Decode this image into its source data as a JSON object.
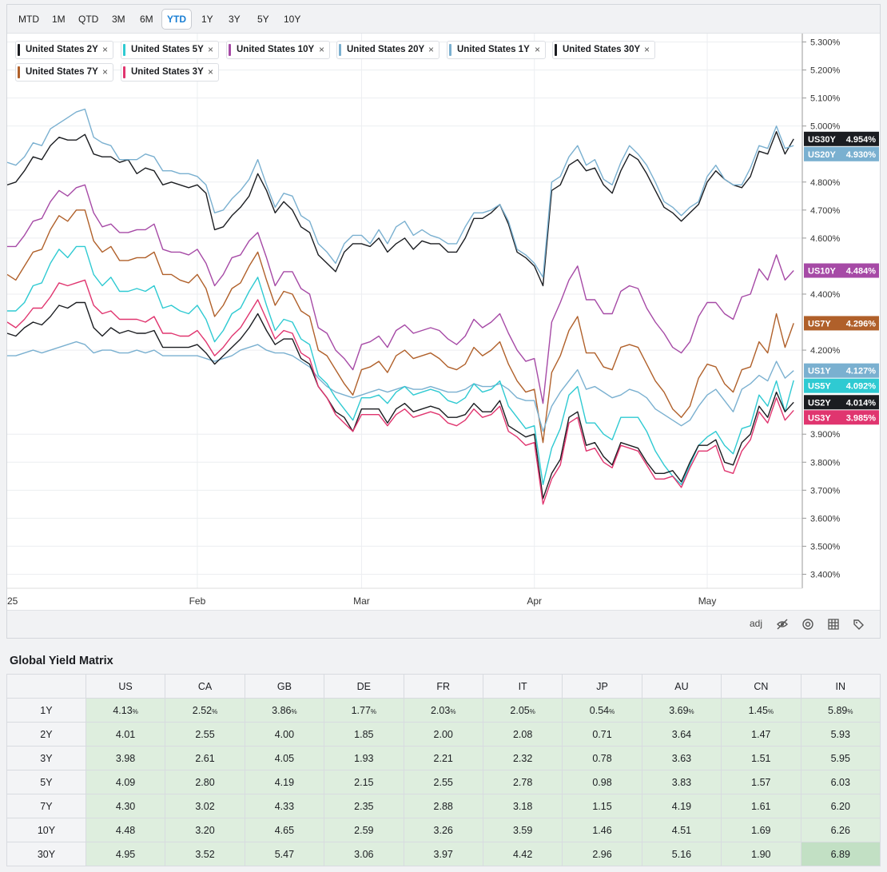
{
  "range_buttons": [
    "MTD",
    "1M",
    "QTD",
    "3M",
    "6M",
    "YTD",
    "1Y",
    "3Y",
    "5Y",
    "10Y"
  ],
  "active_range": "YTD",
  "legend_chips": [
    {
      "label": "United States 2Y",
      "color": "#1b1d21"
    },
    {
      "label": "United States 5Y",
      "color": "#2fcad2"
    },
    {
      "label": "United States 10Y",
      "color": "#a64aa6"
    },
    {
      "label": "United States 20Y",
      "color": "#7ab0d0"
    },
    {
      "label": "United States 1Y",
      "color": "#7ab0d0"
    },
    {
      "label": "United States 30Y",
      "color": "#1b1d21"
    },
    {
      "label": "United States 7Y",
      "color": "#b0602a"
    },
    {
      "label": "United States 3Y",
      "color": "#e0356f"
    }
  ],
  "chip_close": "×",
  "chart_data": {
    "type": "line",
    "x_labels": [
      {
        "label": "25",
        "x": 0
      },
      {
        "label": "Feb",
        "x": 22
      },
      {
        "label": "Mar",
        "x": 41
      },
      {
        "label": "Apr",
        "x": 61
      },
      {
        "label": "May",
        "x": 81
      }
    ],
    "x_max": 92,
    "y_ticks": [
      "5.300%",
      "5.200%",
      "5.100%",
      "5.000%",
      "4.800%",
      "4.700%",
      "4.600%",
      "4.400%",
      "4.200%",
      "3.900%",
      "3.800%",
      "3.700%",
      "3.600%",
      "3.500%",
      "3.400%"
    ],
    "ylim": [
      3.35,
      5.33
    ],
    "series": [
      {
        "name": "US30Y",
        "value_label": "4.954%",
        "color": "#1b1d21",
        "y": [
          4.79,
          4.8,
          4.84,
          4.89,
          4.88,
          4.93,
          4.96,
          4.95,
          4.95,
          4.97,
          4.9,
          4.89,
          4.89,
          4.87,
          4.88,
          4.83,
          4.85,
          4.84,
          4.79,
          4.8,
          4.79,
          4.78,
          4.79,
          4.76,
          4.63,
          4.64,
          4.68,
          4.71,
          4.75,
          4.83,
          4.77,
          4.69,
          4.73,
          4.7,
          4.64,
          4.62,
          4.54,
          4.51,
          4.48,
          4.55,
          4.58,
          4.58,
          4.57,
          4.6,
          4.55,
          4.58,
          4.6,
          4.56,
          4.59,
          4.58,
          4.58,
          4.55,
          4.55,
          4.6,
          4.67,
          4.67,
          4.69,
          4.72,
          4.65,
          4.55,
          4.53,
          4.5,
          4.43,
          4.77,
          4.79,
          4.86,
          4.88,
          4.84,
          4.85,
          4.79,
          4.76,
          4.84,
          4.9,
          4.88,
          4.83,
          4.77,
          4.71,
          4.69,
          4.66,
          4.69,
          4.72,
          4.8,
          4.84,
          4.81,
          4.79,
          4.78,
          4.82,
          4.91,
          4.9,
          4.98,
          4.9,
          4.954
        ]
      },
      {
        "name": "US20Y",
        "value_label": "4.930%",
        "color": "#7ab0d0",
        "y": [
          4.87,
          4.86,
          4.89,
          4.94,
          4.93,
          4.99,
          5.01,
          5.03,
          5.05,
          5.06,
          4.96,
          4.94,
          4.93,
          4.88,
          4.88,
          4.88,
          4.9,
          4.89,
          4.84,
          4.84,
          4.83,
          4.83,
          4.82,
          4.79,
          4.69,
          4.7,
          4.74,
          4.77,
          4.81,
          4.88,
          4.79,
          4.71,
          4.76,
          4.75,
          4.68,
          4.66,
          4.58,
          4.55,
          4.51,
          4.58,
          4.61,
          4.61,
          4.58,
          4.63,
          4.58,
          4.64,
          4.66,
          4.61,
          4.63,
          4.61,
          4.6,
          4.58,
          4.58,
          4.64,
          4.69,
          4.69,
          4.7,
          4.72,
          4.66,
          4.56,
          4.54,
          4.51,
          4.46,
          4.8,
          4.82,
          4.89,
          4.93,
          4.86,
          4.88,
          4.81,
          4.79,
          4.87,
          4.93,
          4.9,
          4.86,
          4.8,
          4.73,
          4.71,
          4.68,
          4.71,
          4.73,
          4.82,
          4.86,
          4.81,
          4.79,
          4.79,
          4.85,
          4.93,
          4.92,
          5.0,
          4.92,
          4.93
        ]
      },
      {
        "name": "US10Y",
        "value_label": "4.484%",
        "color": "#a64aa6",
        "y": [
          4.57,
          4.57,
          4.61,
          4.66,
          4.67,
          4.73,
          4.77,
          4.75,
          4.78,
          4.79,
          4.69,
          4.64,
          4.65,
          4.62,
          4.62,
          4.63,
          4.63,
          4.65,
          4.56,
          4.55,
          4.55,
          4.54,
          4.56,
          4.51,
          4.43,
          4.47,
          4.53,
          4.54,
          4.59,
          4.62,
          4.53,
          4.43,
          4.48,
          4.48,
          4.42,
          4.4,
          4.28,
          4.26,
          4.2,
          4.17,
          4.13,
          4.22,
          4.23,
          4.25,
          4.21,
          4.27,
          4.29,
          4.26,
          4.27,
          4.28,
          4.27,
          4.24,
          4.22,
          4.25,
          4.31,
          4.28,
          4.3,
          4.33,
          4.26,
          4.2,
          4.16,
          4.17,
          4.01,
          4.3,
          4.37,
          4.45,
          4.5,
          4.38,
          4.38,
          4.33,
          4.33,
          4.41,
          4.43,
          4.42,
          4.35,
          4.3,
          4.26,
          4.21,
          4.19,
          4.23,
          4.32,
          4.37,
          4.37,
          4.33,
          4.31,
          4.39,
          4.4,
          4.49,
          4.45,
          4.54,
          4.45,
          4.484
        ]
      },
      {
        "name": "US7Y",
        "value_label": "4.296%",
        "color": "#b0602a",
        "y": [
          4.47,
          4.45,
          4.5,
          4.55,
          4.56,
          4.63,
          4.68,
          4.66,
          4.7,
          4.7,
          4.59,
          4.55,
          4.57,
          4.52,
          4.52,
          4.53,
          4.53,
          4.55,
          4.47,
          4.47,
          4.45,
          4.44,
          4.47,
          4.42,
          4.32,
          4.36,
          4.42,
          4.44,
          4.5,
          4.55,
          4.45,
          4.36,
          4.41,
          4.4,
          4.34,
          4.32,
          4.2,
          4.18,
          4.13,
          4.08,
          4.04,
          4.13,
          4.14,
          4.16,
          4.12,
          4.18,
          4.2,
          4.17,
          4.18,
          4.19,
          4.17,
          4.14,
          4.13,
          4.15,
          4.21,
          4.18,
          4.2,
          4.23,
          4.15,
          4.09,
          4.05,
          4.06,
          3.87,
          4.12,
          4.18,
          4.27,
          4.32,
          4.19,
          4.19,
          4.14,
          4.13,
          4.21,
          4.22,
          4.21,
          4.15,
          4.09,
          4.05,
          3.99,
          3.96,
          4.0,
          4.1,
          4.15,
          4.14,
          4.08,
          4.05,
          4.13,
          4.14,
          4.23,
          4.19,
          4.33,
          4.21,
          4.296
        ]
      },
      {
        "name": "US1Y",
        "value_label": "4.127%",
        "color": "#7ab0d0",
        "y": [
          4.18,
          4.18,
          4.19,
          4.2,
          4.19,
          4.2,
          4.21,
          4.22,
          4.23,
          4.22,
          4.19,
          4.2,
          4.2,
          4.19,
          4.19,
          4.2,
          4.19,
          4.2,
          4.18,
          4.18,
          4.18,
          4.18,
          4.18,
          4.17,
          4.16,
          4.17,
          4.18,
          4.2,
          4.21,
          4.22,
          4.2,
          4.19,
          4.19,
          4.18,
          4.16,
          4.14,
          4.1,
          4.07,
          4.05,
          4.04,
          4.03,
          4.04,
          4.05,
          4.06,
          4.05,
          4.06,
          4.07,
          4.06,
          4.06,
          4.07,
          4.06,
          4.05,
          4.05,
          4.06,
          4.08,
          4.07,
          4.07,
          4.08,
          4.06,
          4.03,
          4.02,
          4.02,
          3.91,
          4.0,
          4.05,
          4.09,
          4.13,
          4.06,
          4.07,
          4.05,
          4.03,
          4.04,
          4.06,
          4.05,
          4.03,
          3.99,
          3.97,
          3.95,
          3.93,
          3.95,
          4.0,
          4.04,
          4.06,
          4.02,
          3.98,
          4.06,
          4.08,
          4.11,
          4.09,
          4.16,
          4.1,
          4.127
        ]
      },
      {
        "name": "US5Y",
        "value_label": "4.092%",
        "color": "#2fcad2",
        "y": [
          4.34,
          4.34,
          4.37,
          4.43,
          4.44,
          4.51,
          4.56,
          4.53,
          4.57,
          4.57,
          4.47,
          4.43,
          4.46,
          4.41,
          4.41,
          4.42,
          4.41,
          4.43,
          4.35,
          4.36,
          4.34,
          4.33,
          4.36,
          4.31,
          4.23,
          4.27,
          4.33,
          4.35,
          4.41,
          4.46,
          4.36,
          4.27,
          4.31,
          4.3,
          4.24,
          4.22,
          4.11,
          4.08,
          4.03,
          3.99,
          3.95,
          4.03,
          4.03,
          4.04,
          4.01,
          4.05,
          4.07,
          4.04,
          4.05,
          4.06,
          4.05,
          4.02,
          4.01,
          4.03,
          4.08,
          4.05,
          4.06,
          4.09,
          4.0,
          3.96,
          3.92,
          3.93,
          3.72,
          3.85,
          3.92,
          4.04,
          4.07,
          3.94,
          3.94,
          3.9,
          3.88,
          3.96,
          3.96,
          3.96,
          3.91,
          3.84,
          3.79,
          3.75,
          3.72,
          3.79,
          3.86,
          3.89,
          3.91,
          3.86,
          3.83,
          3.92,
          3.93,
          4.04,
          4.0,
          4.09,
          3.98,
          4.092
        ]
      },
      {
        "name": "US2Y",
        "value_label": "4.014%",
        "color": "#1b1d21",
        "y": [
          4.26,
          4.25,
          4.28,
          4.3,
          4.29,
          4.32,
          4.36,
          4.35,
          4.37,
          4.37,
          4.28,
          4.25,
          4.28,
          4.26,
          4.27,
          4.26,
          4.26,
          4.27,
          4.21,
          4.21,
          4.21,
          4.21,
          4.22,
          4.19,
          4.15,
          4.18,
          4.21,
          4.24,
          4.28,
          4.33,
          4.27,
          4.22,
          4.24,
          4.24,
          4.17,
          4.15,
          4.07,
          4.03,
          3.98,
          3.96,
          3.91,
          3.99,
          3.99,
          3.99,
          3.94,
          3.99,
          4.01,
          3.98,
          3.99,
          4.0,
          3.99,
          3.96,
          3.96,
          3.97,
          4.01,
          3.98,
          3.98,
          4.02,
          3.93,
          3.91,
          3.89,
          3.9,
          3.67,
          3.76,
          3.81,
          3.96,
          3.98,
          3.86,
          3.87,
          3.82,
          3.79,
          3.87,
          3.86,
          3.85,
          3.8,
          3.76,
          3.76,
          3.77,
          3.73,
          3.8,
          3.86,
          3.86,
          3.88,
          3.8,
          3.79,
          3.87,
          3.9,
          4.0,
          3.96,
          4.05,
          3.98,
          4.014
        ]
      },
      {
        "name": "US3Y",
        "value_label": "3.985%",
        "color": "#e0356f",
        "y": [
          4.3,
          4.28,
          4.31,
          4.35,
          4.35,
          4.39,
          4.44,
          4.43,
          4.44,
          4.45,
          4.36,
          4.33,
          4.34,
          4.31,
          4.31,
          4.31,
          4.3,
          4.32,
          4.26,
          4.26,
          4.25,
          4.25,
          4.27,
          4.23,
          4.18,
          4.21,
          4.25,
          4.28,
          4.33,
          4.38,
          4.31,
          4.24,
          4.27,
          4.26,
          4.19,
          4.17,
          4.07,
          4.03,
          3.97,
          3.94,
          3.91,
          3.97,
          3.97,
          3.97,
          3.93,
          3.97,
          3.99,
          3.96,
          3.97,
          3.98,
          3.97,
          3.94,
          3.93,
          3.95,
          3.99,
          3.96,
          3.97,
          4.0,
          3.91,
          3.89,
          3.86,
          3.87,
          3.65,
          3.74,
          3.79,
          3.94,
          3.96,
          3.84,
          3.85,
          3.8,
          3.78,
          3.86,
          3.85,
          3.84,
          3.79,
          3.74,
          3.74,
          3.75,
          3.71,
          3.78,
          3.84,
          3.84,
          3.86,
          3.77,
          3.76,
          3.84,
          3.88,
          3.98,
          3.94,
          4.03,
          3.95,
          3.985
        ]
      }
    ],
    "title": "",
    "xlabel": "",
    "ylabel": "",
    "grid": true,
    "legend": "top-left"
  },
  "footer": {
    "adj": "adj"
  },
  "matrix": {
    "title": "Global Yield Matrix",
    "columns": [
      "US",
      "CA",
      "GB",
      "DE",
      "FR",
      "IT",
      "JP",
      "AU",
      "CN",
      "IN"
    ],
    "pct_sign": "%",
    "rows": [
      {
        "tenor": "1Y",
        "values": [
          "4.13",
          "2.52",
          "3.86",
          "1.77",
          "2.03",
          "2.05",
          "0.54",
          "3.69",
          "1.45",
          "5.89"
        ]
      },
      {
        "tenor": "2Y",
        "values": [
          "4.01",
          "2.55",
          "4.00",
          "1.85",
          "2.00",
          "2.08",
          "0.71",
          "3.64",
          "1.47",
          "5.93"
        ]
      },
      {
        "tenor": "3Y",
        "values": [
          "3.98",
          "2.61",
          "4.05",
          "1.93",
          "2.21",
          "2.32",
          "0.78",
          "3.63",
          "1.51",
          "5.95"
        ]
      },
      {
        "tenor": "5Y",
        "values": [
          "4.09",
          "2.80",
          "4.19",
          "2.15",
          "2.55",
          "2.78",
          "0.98",
          "3.83",
          "1.57",
          "6.03"
        ]
      },
      {
        "tenor": "7Y",
        "values": [
          "4.30",
          "3.02",
          "4.33",
          "2.35",
          "2.88",
          "3.18",
          "1.15",
          "4.19",
          "1.61",
          "6.20"
        ]
      },
      {
        "tenor": "10Y",
        "values": [
          "4.48",
          "3.20",
          "4.65",
          "2.59",
          "3.26",
          "3.59",
          "1.46",
          "4.51",
          "1.69",
          "6.26"
        ]
      },
      {
        "tenor": "30Y",
        "values": [
          "4.95",
          "3.52",
          "5.47",
          "3.06",
          "3.97",
          "4.42",
          "2.96",
          "5.16",
          "1.90",
          "6.89"
        ]
      }
    ]
  }
}
